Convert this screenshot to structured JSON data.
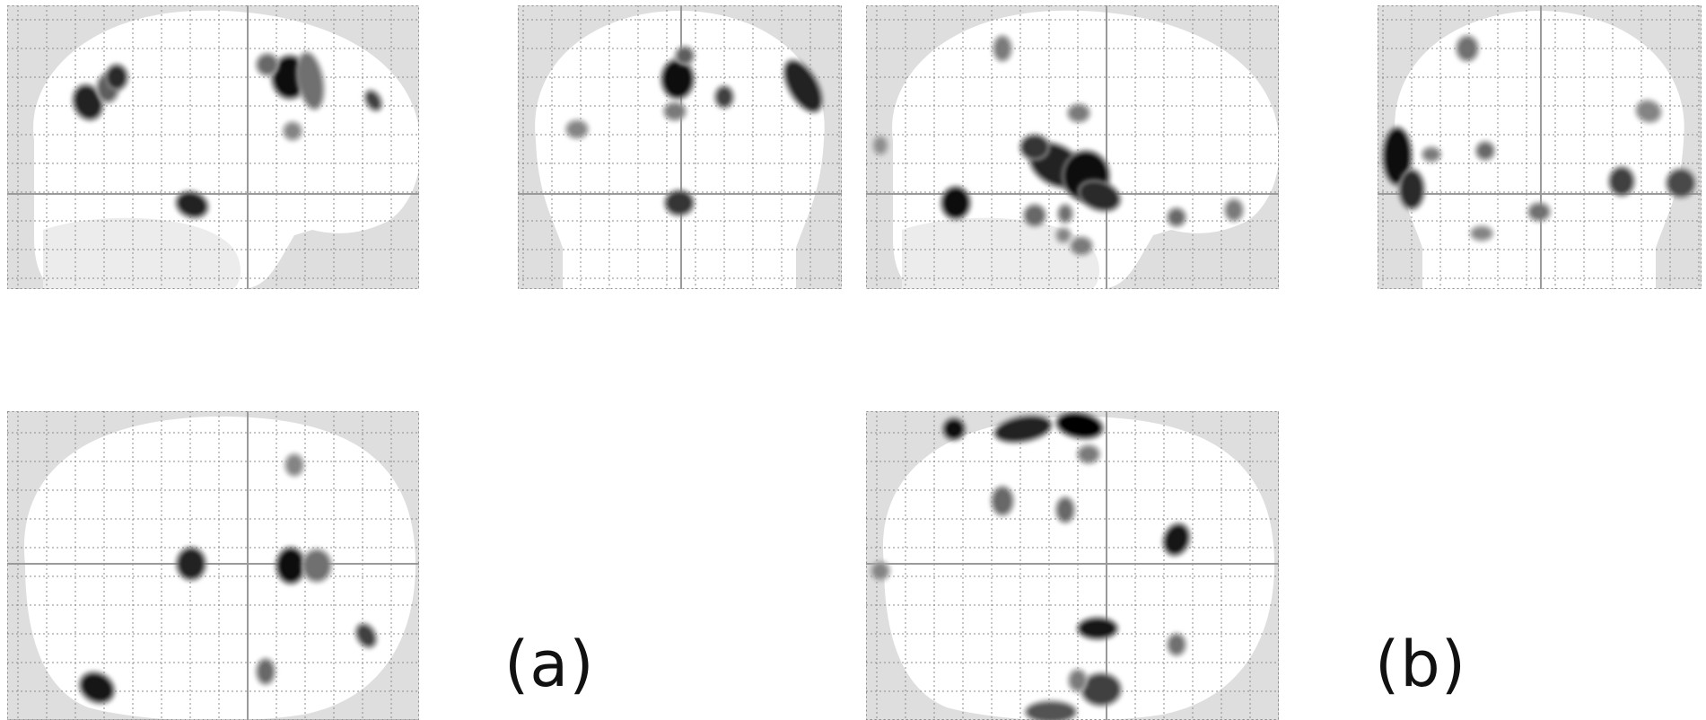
{
  "figure": {
    "labels": {
      "a": "(a)",
      "b": "(b)"
    },
    "colors": {
      "background": "#dedede",
      "brain": "#ffffff",
      "grid": "#8c8c8c",
      "crosshair": "#9a9a9a",
      "blob_dark": "#0a0a0a",
      "blob_light": "#9c9c9c"
    },
    "panels": {
      "a_sagittal": {
        "view": "sagittal",
        "blobs": [
          {
            "shape": "ellipse",
            "intensity": 0.85
          },
          {
            "shape": "ellipse",
            "intensity": 0.55
          },
          {
            "shape": "ellipse",
            "intensity": 0.8
          },
          {
            "shape": "ellipse",
            "intensity": 0.95
          },
          {
            "shape": "ellipse",
            "intensity": 0.5
          },
          {
            "shape": "ellipse",
            "intensity": 0.45
          },
          {
            "shape": "ellipse",
            "intensity": 0.7
          },
          {
            "shape": "ellipse",
            "intensity": 0.35
          },
          {
            "shape": "ellipse",
            "intensity": 0.85
          }
        ]
      },
      "a_coronal": {
        "view": "coronal",
        "blobs": [
          {
            "shape": "ellipse",
            "intensity": 0.95
          },
          {
            "shape": "ellipse",
            "intensity": 0.55
          },
          {
            "shape": "ellipse",
            "intensity": 0.4
          },
          {
            "shape": "ellipse",
            "intensity": 0.7
          },
          {
            "shape": "ellipse",
            "intensity": 0.85
          },
          {
            "shape": "ellipse",
            "intensity": 0.35
          },
          {
            "shape": "ellipse",
            "intensity": 0.75
          }
        ]
      },
      "a_axial": {
        "view": "axial",
        "blobs": [
          {
            "shape": "ellipse",
            "intensity": 0.35
          },
          {
            "shape": "ellipse",
            "intensity": 0.85
          },
          {
            "shape": "ellipse",
            "intensity": 0.95
          },
          {
            "shape": "ellipse",
            "intensity": 0.45
          },
          {
            "shape": "ellipse",
            "intensity": 0.7
          },
          {
            "shape": "ellipse",
            "intensity": 0.9
          },
          {
            "shape": "ellipse",
            "intensity": 0.5
          }
        ]
      },
      "b_sagittal": {
        "view": "sagittal",
        "blobs": [
          {
            "shape": "ellipse",
            "intensity": 0.4
          },
          {
            "shape": "ellipse",
            "intensity": 0.4
          },
          {
            "shape": "ellipse",
            "intensity": 0.3
          },
          {
            "shape": "ellipse",
            "intensity": 0.85
          },
          {
            "shape": "ellipse",
            "intensity": 0.75
          },
          {
            "shape": "ellipse",
            "intensity": 0.95
          },
          {
            "shape": "ellipse",
            "intensity": 0.8
          },
          {
            "shape": "ellipse",
            "intensity": 0.95
          },
          {
            "shape": "ellipse",
            "intensity": 0.5
          },
          {
            "shape": "ellipse",
            "intensity": 0.45
          },
          {
            "shape": "ellipse",
            "intensity": 0.5
          },
          {
            "shape": "ellipse",
            "intensity": 0.4
          },
          {
            "shape": "ellipse",
            "intensity": 0.4
          },
          {
            "shape": "ellipse",
            "intensity": 0.35
          }
        ]
      },
      "b_coronal": {
        "view": "coronal",
        "blobs": [
          {
            "shape": "ellipse",
            "intensity": 0.45
          },
          {
            "shape": "ellipse",
            "intensity": 0.35
          },
          {
            "shape": "ellipse",
            "intensity": 0.95
          },
          {
            "shape": "ellipse",
            "intensity": 0.8
          },
          {
            "shape": "ellipse",
            "intensity": 0.7
          },
          {
            "shape": "ellipse",
            "intensity": 0.4
          },
          {
            "shape": "ellipse",
            "intensity": 0.5
          },
          {
            "shape": "ellipse",
            "intensity": 0.65
          },
          {
            "shape": "ellipse",
            "intensity": 0.45
          },
          {
            "shape": "ellipse",
            "intensity": 0.35
          }
        ]
      },
      "b_axial": {
        "view": "axial",
        "blobs": [
          {
            "shape": "ellipse",
            "intensity": 0.95
          },
          {
            "shape": "ellipse",
            "intensity": 0.85
          },
          {
            "shape": "ellipse",
            "intensity": 1.0
          },
          {
            "shape": "ellipse",
            "intensity": 0.4
          },
          {
            "shape": "ellipse",
            "intensity": 0.5
          },
          {
            "shape": "ellipse",
            "intensity": 0.5
          },
          {
            "shape": "ellipse",
            "intensity": 0.6
          },
          {
            "shape": "ellipse",
            "intensity": 0.7
          },
          {
            "shape": "ellipse",
            "intensity": 0.9
          },
          {
            "shape": "ellipse",
            "intensity": 0.4
          },
          {
            "shape": "ellipse",
            "intensity": 0.9
          },
          {
            "shape": "ellipse",
            "intensity": 0.35
          },
          {
            "shape": "ellipse",
            "intensity": 0.45
          }
        ]
      }
    }
  }
}
